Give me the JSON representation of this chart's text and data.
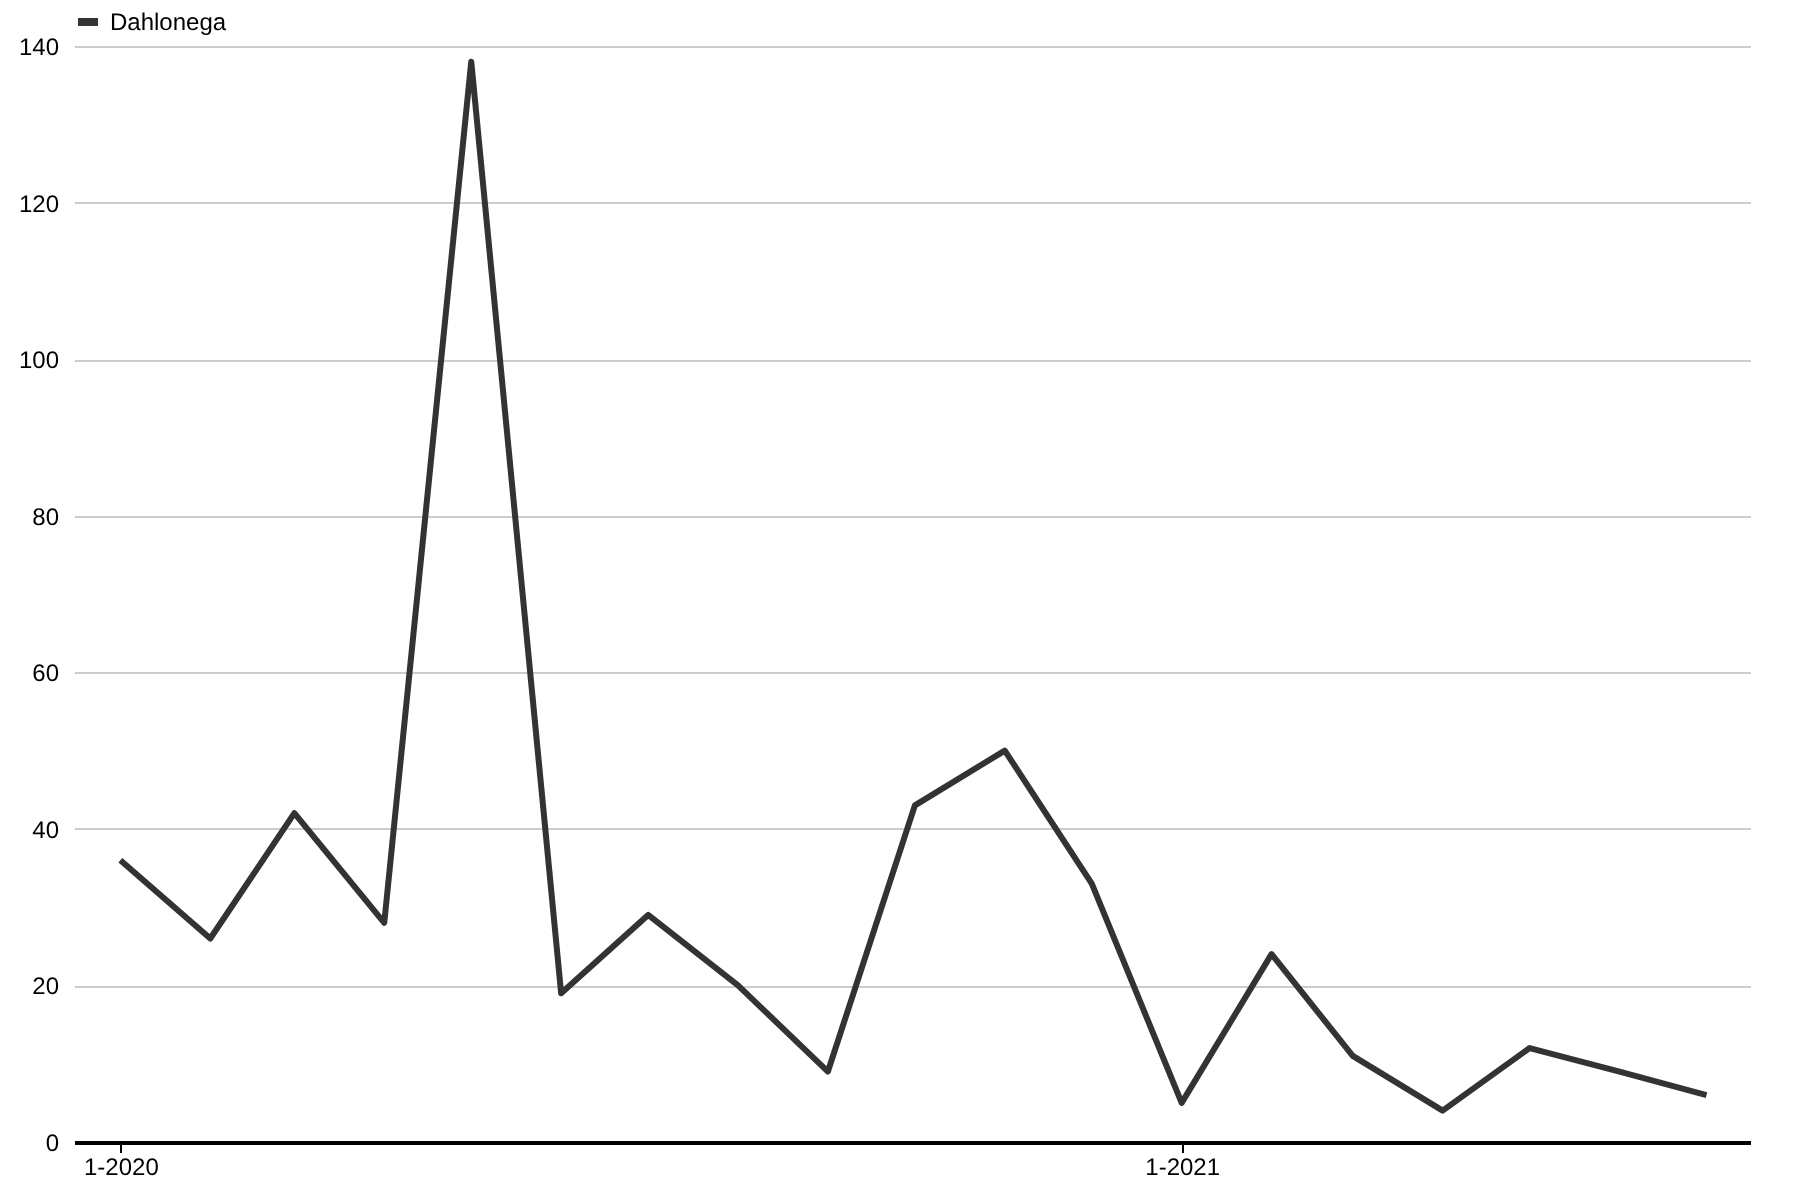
{
  "chart_data": {
    "type": "line",
    "x": [
      "2020-01",
      "2020-02",
      "2020-03",
      "2020-04",
      "2020-05",
      "2020-06",
      "2020-07",
      "2020-08",
      "2020-09",
      "2020-10",
      "2020-11",
      "2020-12",
      "2021-01",
      "2021-02",
      "2021-03",
      "2021-04",
      "2021-05",
      "2021-06",
      "2021-07"
    ],
    "series": [
      {
        "name": "Dahlonega",
        "color": "#333333",
        "values": [
          36,
          26,
          42,
          28,
          138,
          19,
          29,
          20,
          9,
          43,
          50,
          33,
          5,
          24,
          11,
          4,
          12,
          9,
          6
        ]
      }
    ],
    "xlim": [
      "2019-12-16",
      "2021-07-16"
    ],
    "xticks": [
      {
        "value": "2020-01",
        "label": "1-2020"
      },
      {
        "value": "2021-01",
        "label": "1-2021"
      }
    ],
    "ylim": [
      0,
      140
    ],
    "yticks": [
      0,
      20,
      40,
      60,
      80,
      100,
      120,
      140
    ],
    "grid": "y",
    "legend": "top",
    "marker": "none",
    "line_style": "solid"
  }
}
